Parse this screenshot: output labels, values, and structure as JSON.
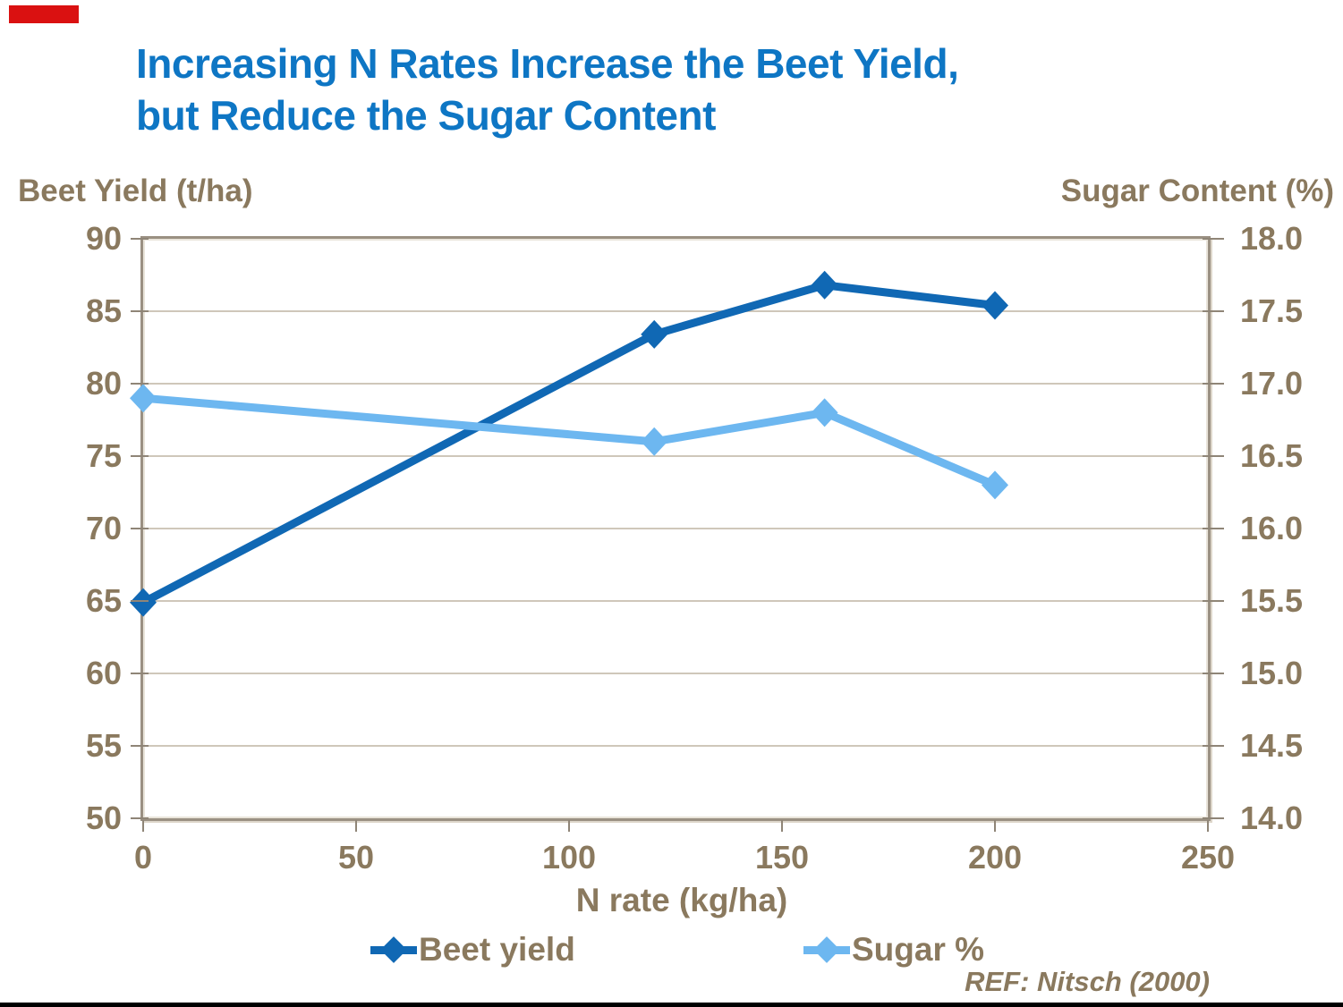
{
  "slide": {
    "title_line1": "Increasing N Rates Increase the Beet Yield,",
    "title_line2": "but Reduce the Sugar Content",
    "reference": "REF: Nitsch (2000)"
  },
  "theme": {
    "title_blue": "#0e76c4",
    "text_brown": "#8a795e",
    "gridline_tan": "#cfc7ba",
    "axis_line": "#9a9082",
    "accent_red_bar": "#da1111",
    "beet_line_blue": "#1068b4",
    "sugar_line_light_blue": "#6db7f0",
    "bottom_rule_black": "#000000"
  },
  "chart_data": {
    "type": "line",
    "title": "Increasing N Rates Increase the Beet Yield, but Reduce the Sugar Content",
    "x": [
      0,
      120,
      160,
      200
    ],
    "xlabel": "N rate (kg/ha)",
    "xlim": [
      0,
      250
    ],
    "x_ticks": [
      0,
      50,
      100,
      150,
      200,
      250
    ],
    "grid": "horizontal only, light tan, every tick",
    "legend_position": "bottom",
    "left_axis": {
      "header": "Beet Yield (t/ha)",
      "min": 50,
      "max": 90,
      "step": 5,
      "tick_labels": [
        "90",
        "85",
        "80",
        "75",
        "70",
        "65",
        "60",
        "55",
        "50"
      ]
    },
    "right_axis": {
      "header": "Sugar Content (%)",
      "min": 14,
      "max": 18,
      "step": 0.5,
      "tick_labels": [
        "18.0",
        "17.5",
        "17.0",
        "16.5",
        "16.0",
        "15.5",
        "15.0",
        "14.5",
        "14.0"
      ]
    },
    "series": [
      {
        "name": "Beet yield",
        "axis": "left",
        "color": "#1068b4",
        "marker": "diamond",
        "values": [
          64.9,
          83.4,
          86.8,
          85.4
        ]
      },
      {
        "name": "Sugar %",
        "axis": "right",
        "color": "#6db7f0",
        "marker": "diamond",
        "values": [
          16.9,
          16.6,
          16.8,
          16.3
        ]
      }
    ]
  }
}
